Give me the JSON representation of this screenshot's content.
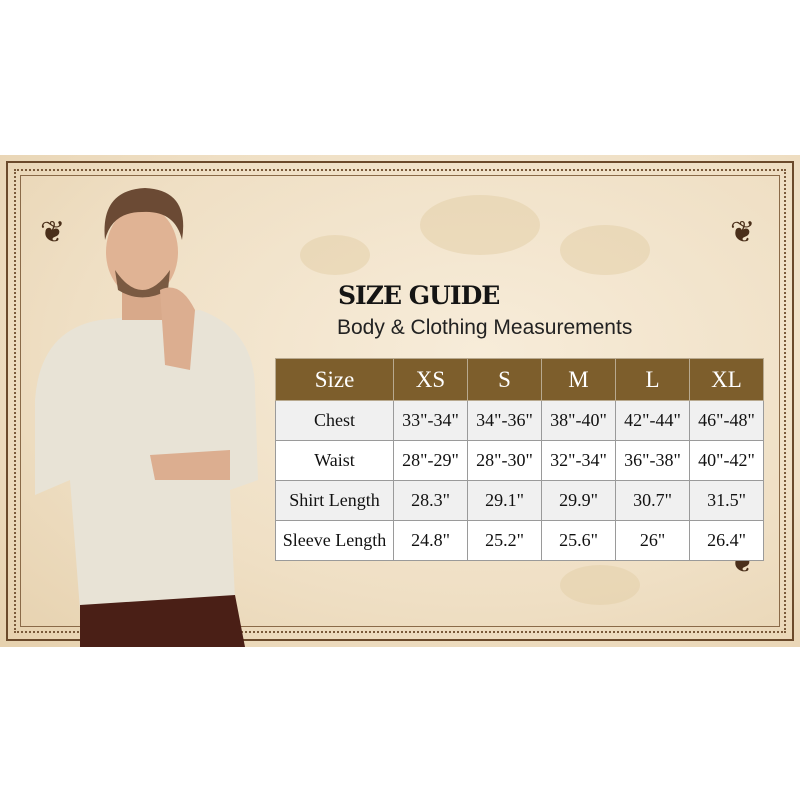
{
  "heading": {
    "title": "SIZE GUIDE",
    "subtitle": "Body & Clothing Measurements"
  },
  "table": {
    "headers": [
      "Size",
      "XS",
      "S",
      "M",
      "L",
      "XL"
    ],
    "rows": [
      {
        "label": "Chest",
        "values": [
          "33\"-34\"",
          "34\"-36\"",
          "38\"-40\"",
          "42\"-44\"",
          "46\"-48\""
        ]
      },
      {
        "label": "Waist",
        "values": [
          "28\"-29\"",
          "28\"-30\"",
          "32\"-34\"",
          "36\"-38\"",
          "40\"-42\""
        ]
      },
      {
        "label": "Shirt Length",
        "values": [
          "28.3\"",
          "29.1\"",
          "29.9\"",
          "30.7\"",
          "31.5\""
        ]
      },
      {
        "label": "Sleeve Length",
        "values": [
          "24.8\"",
          "25.2\"",
          "25.6\"",
          "26\"",
          "26.4\""
        ]
      }
    ]
  },
  "colors": {
    "header_bg": "#7d5e2c",
    "parchment": "#efdfc4",
    "border": "#6b4a2b"
  }
}
